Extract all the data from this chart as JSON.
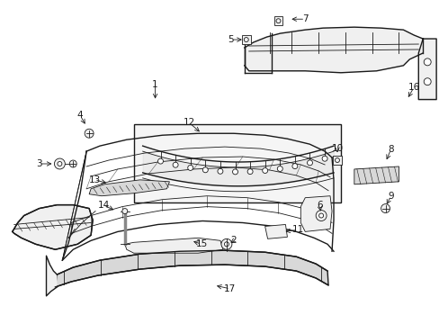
{
  "bg_color": "#ffffff",
  "line_color": "#1a1a1a",
  "fill_light": "#f0f0f0",
  "fill_mid": "#d8d8d8",
  "fill_dark": "#c0c0c0",
  "label_positions": {
    "1": [
      170,
      95,
      188,
      118
    ],
    "2": [
      258,
      272,
      238,
      272
    ],
    "3": [
      42,
      182,
      62,
      182
    ],
    "4": [
      88,
      130,
      99,
      148
    ],
    "5": [
      258,
      43,
      275,
      43
    ],
    "6": [
      358,
      248,
      358,
      232
    ],
    "7": [
      340,
      22,
      322,
      22
    ],
    "8": [
      436,
      168,
      436,
      182
    ],
    "9": [
      436,
      220,
      436,
      232
    ],
    "10": [
      376,
      168,
      376,
      182
    ],
    "11": [
      330,
      258,
      312,
      255
    ],
    "12": [
      210,
      138,
      225,
      150
    ],
    "13": [
      105,
      202,
      123,
      202
    ],
    "14": [
      115,
      230,
      127,
      240
    ],
    "15": [
      222,
      270,
      210,
      260
    ],
    "16": [
      462,
      98,
      454,
      108
    ],
    "17": [
      255,
      322,
      238,
      322
    ]
  }
}
